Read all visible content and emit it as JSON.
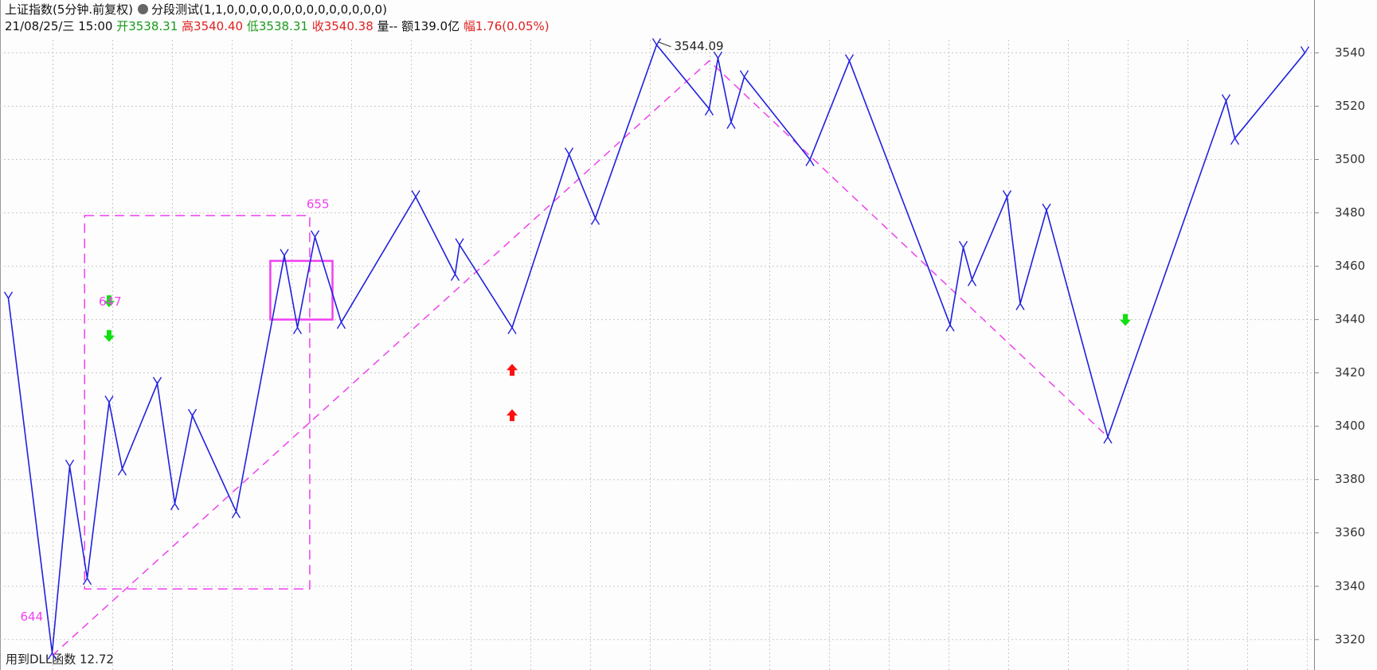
{
  "header": {
    "symbol": "上证指数(5分钟.前复权)",
    "indicator": "分段测试(1,1,0,0,0,0,0,0,0,0,0,0,0,0,0,0)",
    "datetime": "21/08/25/三 15:00",
    "open_label": "开",
    "open": "3538.31",
    "high_label": "高",
    "high": "3540.40",
    "low_label": "低",
    "low": "3538.31",
    "close_label": "收",
    "close": "3540.38",
    "volume": "量--",
    "amount": "额139.0亿",
    "change_label": "幅",
    "change": "1.76(0.05%)"
  },
  "footer": {
    "text": "用到DLL函数",
    "value": "12.72"
  },
  "chart_data": {
    "type": "line",
    "color": "#2020e0",
    "x": [
      1,
      11,
      15,
      19,
      24,
      27,
      35,
      39,
      43,
      53,
      64,
      67,
      71,
      77,
      94,
      103,
      104,
      116,
      129,
      135,
      149,
      161,
      163,
      166,
      169,
      184,
      193,
      216,
      219,
      221,
      229,
      232,
      238,
      252,
      279,
      281,
      297
    ],
    "values": [
      3448,
      3315,
      3385,
      3343,
      3409,
      3384,
      3416,
      3371,
      3404,
      3368,
      3464,
      3437,
      3471,
      3439,
      3486,
      3457,
      3468,
      3437,
      3502,
      3478,
      3543,
      3519,
      3538,
      3514,
      3531,
      3500,
      3537,
      3438,
      3467,
      3455,
      3486,
      3446,
      3481,
      3396,
      3522,
      3508,
      3540
    ],
    "trend": {
      "color": "#f040f0",
      "x": [
        11,
        161,
        252
      ],
      "values": [
        3314,
        3537,
        3396
      ]
    },
    "boxes": [
      {
        "style": "dashed",
        "color": "#f040f0",
        "xrange": [
          18.4,
          69.8
        ],
        "yrange": [
          3339,
          3479
        ]
      },
      {
        "style": "solid",
        "color": "#f040f0",
        "xrange": [
          60.8,
          75
        ],
        "yrange": [
          3440,
          3462
        ]
      }
    ],
    "markers": {
      "x": [
        24,
        24,
        116,
        116,
        256
      ],
      "values": [
        3447,
        3434,
        3421,
        3404,
        3440
      ],
      "kinds": [
        "down",
        "down",
        "up",
        "up",
        "down"
      ],
      "up_color": "#ff1010",
      "down_color": "#10e010"
    },
    "labels": {
      "box": "655",
      "arrows": "647",
      "low": "644",
      "peak": 3544.09
    },
    "xlim": [
      0,
      300
    ],
    "ylim": [
      3308.6,
      3545.5
    ],
    "yticks": [
      3320,
      3340,
      3360,
      3380,
      3400,
      3420,
      3440,
      3460,
      3480,
      3500,
      3520,
      3540
    ],
    "grid": true
  }
}
